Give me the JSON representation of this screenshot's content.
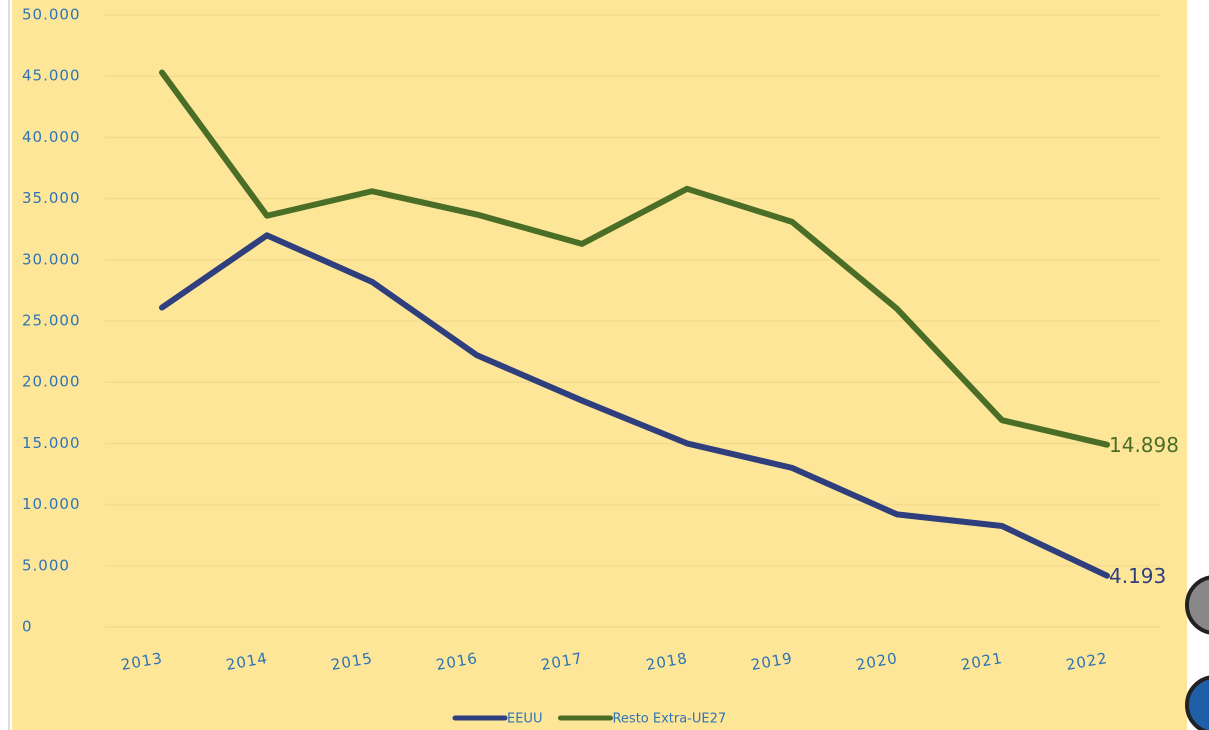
{
  "chart_data": {
    "type": "line",
    "categories": [
      "2013",
      "2014",
      "2015",
      "2016",
      "2017",
      "2018",
      "2019",
      "2020",
      "2021",
      "2022"
    ],
    "series": [
      {
        "name": "EEUU",
        "color": "#2f3f7e",
        "values": [
          26100,
          32000,
          28200,
          22200,
          18500,
          15000,
          13000,
          9200,
          8250,
          4193
        ],
        "value_labels": [
          null,
          null,
          null,
          null,
          null,
          null,
          null,
          null,
          null,
          "4.193"
        ]
      },
      {
        "name": "Resto Extra-UE27",
        "color": "#4b6e27",
        "values": [
          45300,
          33600,
          35600,
          33700,
          31300,
          35800,
          33100,
          26000,
          16900,
          14898
        ],
        "value_labels": [
          null,
          null,
          null,
          null,
          null,
          null,
          null,
          null,
          null,
          "14.898"
        ]
      }
    ],
    "ylim": [
      0,
      50000
    ],
    "yticks": [
      0,
      {
        "value": 5000,
        "label": "5.000"
      },
      {
        "value": 10000,
        "label": "10.000"
      },
      {
        "value": 15000,
        "label": "15.000"
      },
      {
        "value": 20000,
        "label": "20.000"
      },
      {
        "value": 25000,
        "label": "25.000"
      },
      {
        "value": 30000,
        "label": "30.000"
      },
      {
        "value": 35000,
        "label": "35.000"
      },
      {
        "value": 40000,
        "label": "40.000"
      },
      {
        "value": 45000,
        "label": "45.000"
      },
      {
        "value": 50000,
        "label": "50.000"
      }
    ],
    "grid": true,
    "legend": "bottom"
  }
}
